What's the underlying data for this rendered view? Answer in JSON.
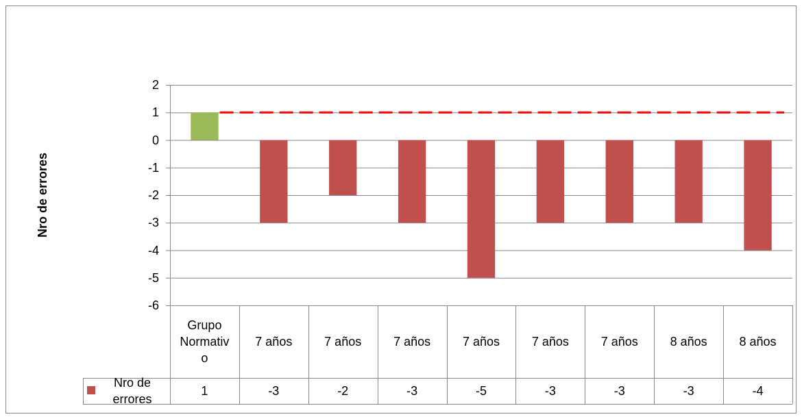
{
  "chart_data": {
    "type": "bar",
    "y_label": "Nro de errores",
    "categories": [
      "Grupo Normativo",
      "7 años",
      "7 años",
      "7 años",
      "7 años",
      "7 años",
      "7 años",
      "8 años",
      "8 años"
    ],
    "series": [
      {
        "name": "Nro de errores",
        "color": "#c0504d",
        "colors": [
          "#9bbb59",
          "#c0504d",
          "#c0504d",
          "#c0504d",
          "#c0504d",
          "#c0504d",
          "#c0504d",
          "#c0504d",
          "#c0504d"
        ],
        "values": [
          1,
          -3,
          -2,
          -3,
          -5,
          -3,
          -3,
          -3,
          -4
        ]
      }
    ],
    "reference_line": {
      "value": 1,
      "color": "#ff0000"
    },
    "ylim": [
      -6,
      2
    ],
    "yticks": [
      -6,
      -5,
      -4,
      -3,
      -2,
      -1,
      0,
      1,
      2
    ],
    "grid": true,
    "data_table": true
  }
}
